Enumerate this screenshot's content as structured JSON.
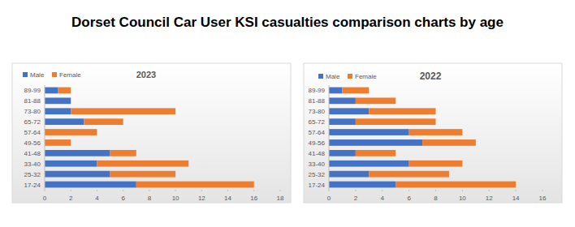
{
  "title": "Dorset Council Car User KSI casualties comparison charts by age",
  "chart_data": [
    {
      "type": "bar",
      "title": "2023",
      "orientation": "horizontal",
      "stacked": true,
      "legend": "top-left",
      "grid": false,
      "categories": [
        "17-24",
        "25-32",
        "33-40",
        "41-48",
        "49-56",
        "57-64",
        "65-72",
        "73-80",
        "81-88",
        "89-99"
      ],
      "series": [
        {
          "name": "Male",
          "color": "#4472c4",
          "values": [
            7,
            5,
            4,
            5,
            0,
            0,
            3,
            2,
            2,
            1
          ]
        },
        {
          "name": "Female",
          "color": "#ed7d31",
          "values": [
            9,
            5,
            7,
            2,
            2,
            4,
            3,
            8,
            0,
            1
          ]
        }
      ],
      "xlim": [
        0,
        18
      ],
      "xticks": [
        0,
        2,
        4,
        6,
        8,
        10,
        12,
        14,
        16,
        18
      ]
    },
    {
      "type": "bar",
      "title": "2022",
      "orientation": "horizontal",
      "stacked": true,
      "legend": "top-left",
      "grid": false,
      "categories": [
        "17-24",
        "25-32",
        "33-40",
        "41-48",
        "49-56",
        "57-64",
        "65-72",
        "73-80",
        "81-88",
        "89-99"
      ],
      "series": [
        {
          "name": "Male",
          "color": "#4472c4",
          "values": [
            5,
            3,
            6,
            2,
            7,
            6,
            2,
            3,
            2,
            1
          ]
        },
        {
          "name": "Female",
          "color": "#ed7d31",
          "values": [
            9,
            6,
            4,
            3,
            4,
            4,
            6,
            5,
            3,
            2
          ]
        }
      ],
      "xlim": [
        0,
        16
      ],
      "xticks": [
        0,
        2,
        4,
        6,
        8,
        10,
        12,
        14,
        16
      ]
    }
  ]
}
